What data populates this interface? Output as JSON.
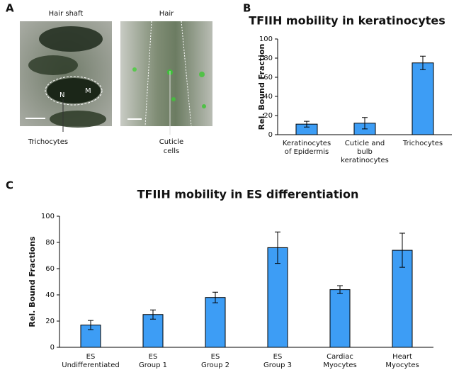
{
  "panels": {
    "a": "A",
    "b": "B",
    "c": "C"
  },
  "images": {
    "left_title": "Hair shaft",
    "right_title": "Hair",
    "nucleus": "N",
    "melanin": "M",
    "left_callout": "Trichocytes",
    "right_callout": [
      "Cuticle",
      "cells"
    ]
  },
  "chart_data": [
    {
      "type": "bar",
      "title": "TFIIH mobility in keratinocytes",
      "y_label": "Rel. Bound Fraction",
      "categories": [
        [
          "Keratinocytes",
          "of Epidermis"
        ],
        [
          "Cuticle and",
          "bulb",
          "keratinocytes"
        ],
        [
          "Trichocytes"
        ]
      ],
      "values": [
        11,
        12,
        75
      ],
      "errors": [
        3,
        6,
        7
      ],
      "color": "#3d9df5",
      "ylim": [
        0,
        100
      ],
      "yticks": [
        0,
        20,
        40,
        60,
        80,
        100
      ]
    },
    {
      "type": "bar",
      "title": "TFIIH mobility in ES differentiation",
      "y_label": "Rel. Bound Fractions",
      "categories": [
        [
          "ES",
          "Undifferentiated"
        ],
        [
          "ES",
          "Group 1"
        ],
        [
          "ES",
          "Group 2"
        ],
        [
          "ES",
          "Group 3"
        ],
        [
          "Cardiac",
          "Myocytes"
        ],
        [
          "Heart",
          "Myocytes"
        ]
      ],
      "values": [
        17,
        25,
        38,
        76,
        44,
        74
      ],
      "errors": [
        3.5,
        3.5,
        4,
        12,
        3,
        13
      ],
      "color": "#3d9df5",
      "ylim": [
        0,
        100
      ],
      "yticks": [
        0,
        20,
        40,
        60,
        80,
        100
      ]
    }
  ]
}
